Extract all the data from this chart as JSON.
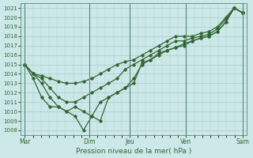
{
  "title": "Pression niveau de la mer( hPa )",
  "bg_color": "#cce8e8",
  "grid_color": "#aacccc",
  "line_color": "#336633",
  "ylim": [
    1007.5,
    1021.5
  ],
  "yticks": [
    1008,
    1009,
    1010,
    1011,
    1012,
    1013,
    1014,
    1015,
    1016,
    1017,
    1018,
    1019,
    1020,
    1021
  ],
  "xtick_labels": [
    "Mar",
    "Dim",
    "Jeu",
    "Ven",
    "Sam"
  ],
  "xtick_pos": [
    0,
    8,
    13,
    20,
    27
  ],
  "vlines": [
    0,
    8,
    13,
    20,
    27
  ],
  "line_high": [
    1015,
    1014.0,
    1013.8,
    1013.5,
    1013.2,
    1013.0,
    1013.0,
    1013.2,
    1013.5,
    1014.0,
    1014.5,
    1015.0,
    1015.3,
    1015.5,
    1016.0,
    1016.5,
    1017.0,
    1017.5,
    1018.0,
    1018.0,
    1018.0,
    1018.3,
    1018.5,
    1019.0,
    1020.0,
    1021.0,
    1020.5
  ],
  "line_mid": [
    1015,
    1014.0,
    1013.5,
    1012.5,
    1011.5,
    1011.0,
    1011.0,
    1011.5,
    1012.0,
    1012.5,
    1013.0,
    1013.5,
    1014.5,
    1015.0,
    1015.5,
    1016.0,
    1016.5,
    1017.0,
    1017.5,
    1017.5,
    1017.8,
    1018.0,
    1018.2,
    1018.8,
    1019.8,
    1021.0,
    1020.5
  ],
  "line_low": [
    1015,
    1014.0,
    1013.0,
    1011.5,
    1010.5,
    1010.0,
    1010.5,
    1010.0,
    1009.5,
    1009.0,
    1011.5,
    1012.0,
    1012.5,
    1013.5,
    1015.0,
    1015.5,
    1016.0,
    1016.5,
    1016.8,
    1017.0,
    1017.5,
    1017.8,
    1018.0,
    1018.5,
    1019.5,
    1021.0,
    1020.5
  ],
  "line_dip": [
    1015,
    1013.5,
    1011.5,
    1010.5,
    1010.5,
    1010.0,
    1009.5,
    1008.0,
    1009.5,
    1011.0,
    1011.5,
    1012.0,
    1012.5,
    1013.0,
    1015.2,
    1015.5,
    1016.2,
    1016.5,
    1016.8,
    1017.2,
    1017.5,
    1017.8,
    1018.0,
    1018.5,
    1019.5,
    1021.0,
    1020.5
  ],
  "n_points": 27
}
